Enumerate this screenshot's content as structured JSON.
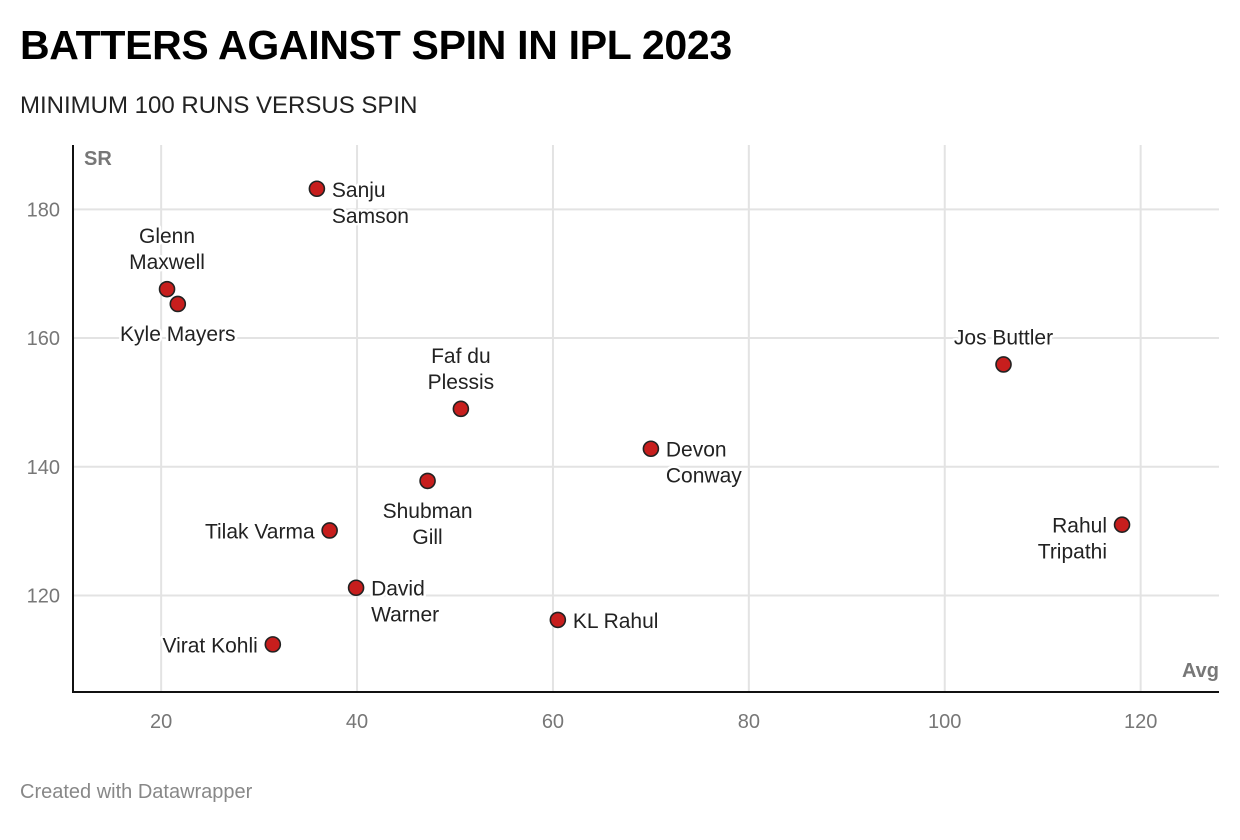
{
  "header": {
    "title": "BATTERS AGAINST SPIN IN IPL 2023",
    "subtitle": "MINIMUM 100 RUNS VERSUS SPIN"
  },
  "footer": {
    "credit": "Created with Datawrapper"
  },
  "chart_data": {
    "type": "scatter",
    "title": "BATTERS AGAINST SPIN IN IPL 2023",
    "subtitle": "MINIMUM 100 RUNS VERSUS SPIN",
    "xlabel": "Avg",
    "ylabel": "SR",
    "xlim": [
      11,
      128
    ],
    "ylim": [
      105,
      190
    ],
    "xticks": [
      20,
      40,
      60,
      80,
      100,
      120
    ],
    "yticks": [
      120,
      140,
      160,
      180
    ],
    "grid": true,
    "marker_color": "#c71e1d",
    "marker_stroke": "#222222",
    "points": [
      {
        "name": "Sanju Samson",
        "label_lines": [
          "Sanju",
          "Samson"
        ],
        "x": 35.9,
        "y": 183.2,
        "label_pos": "right"
      },
      {
        "name": "Glenn Maxwell",
        "label_lines": [
          "Glenn",
          "Maxwell"
        ],
        "x": 20.6,
        "y": 167.6,
        "label_pos": "top"
      },
      {
        "name": "Kyle Mayers",
        "label_lines": [
          "Kyle Mayers"
        ],
        "x": 21.7,
        "y": 165.3,
        "label_pos": "bottom"
      },
      {
        "name": "Faf du Plessis",
        "label_lines": [
          "Faf du",
          "Plessis"
        ],
        "x": 50.6,
        "y": 149.0,
        "label_pos": "top"
      },
      {
        "name": "Jos Buttler",
        "label_lines": [
          "Jos Buttler"
        ],
        "x": 106.0,
        "y": 155.9,
        "label_pos": "top"
      },
      {
        "name": "Devon Conway",
        "label_lines": [
          "Devon",
          "Conway"
        ],
        "x": 70.0,
        "y": 142.8,
        "label_pos": "right"
      },
      {
        "name": "Shubman Gill",
        "label_lines": [
          "Shubman",
          "Gill"
        ],
        "x": 47.2,
        "y": 137.8,
        "label_pos": "bottom"
      },
      {
        "name": "Tilak Varma",
        "label_lines": [
          "Tilak Varma"
        ],
        "x": 37.2,
        "y": 130.1,
        "label_pos": "left"
      },
      {
        "name": "Rahul Tripathi",
        "label_lines": [
          "Rahul",
          "Tripathi"
        ],
        "x": 118.1,
        "y": 131.0,
        "label_pos": "left"
      },
      {
        "name": "David Warner",
        "label_lines": [
          "David",
          "Warner"
        ],
        "x": 39.9,
        "y": 121.2,
        "label_pos": "right"
      },
      {
        "name": "KL Rahul",
        "label_lines": [
          "KL Rahul"
        ],
        "x": 60.5,
        "y": 116.2,
        "label_pos": "right"
      },
      {
        "name": "Virat Kohli",
        "label_lines": [
          "Virat Kohli"
        ],
        "x": 31.4,
        "y": 112.4,
        "label_pos": "left"
      }
    ]
  }
}
